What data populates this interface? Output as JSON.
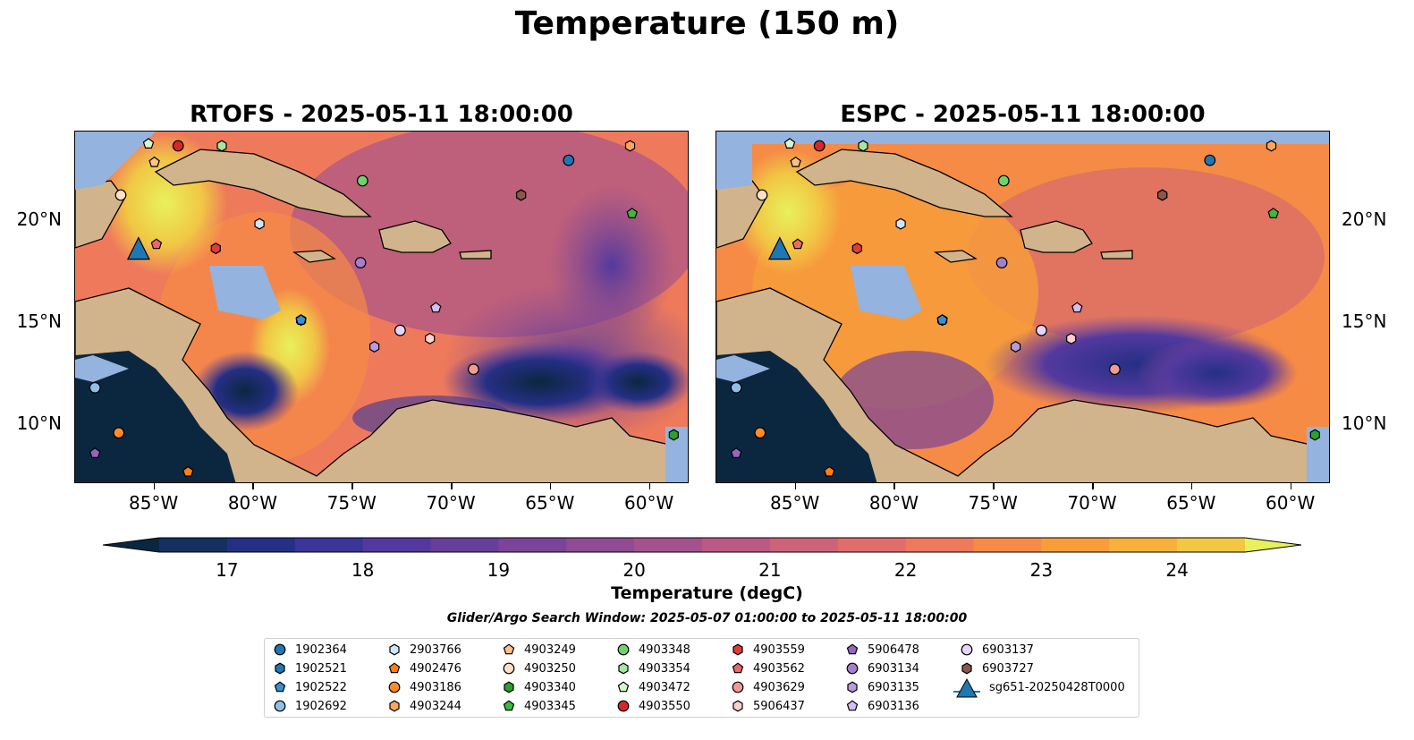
{
  "title": "Temperature (150 m)",
  "panels": [
    {
      "title": "RTOFS - 2025-05-11 18:00:00"
    },
    {
      "title": "ESPC - 2025-05-11 18:00:00"
    }
  ],
  "lon_ticks": [
    "85°W",
    "80°W",
    "75°W",
    "70°W",
    "65°W",
    "60°W"
  ],
  "lat_ticks": [
    "20°N",
    "15°N",
    "10°N"
  ],
  "colorbar": {
    "label": "Temperature (degC)",
    "ticks": [
      "17",
      "18",
      "19",
      "20",
      "21",
      "22",
      "23",
      "24"
    ],
    "min": 16.5,
    "max": 24.5,
    "step": 0.5,
    "colors": [
      "#0b2740",
      "#14305e",
      "#252f85",
      "#3a3598",
      "#53399e",
      "#663f9b",
      "#7a4598",
      "#8f4c93",
      "#a3528e",
      "#b95a84",
      "#cd6379",
      "#e06c6b",
      "#ef7a5b",
      "#f68b46",
      "#f89d3a",
      "#f6b13c",
      "#f1c744",
      "#e8f15c"
    ]
  },
  "search_window": "Glider/Argo Search Window: 2025-05-07 01:00:00 to 2025-05-11 18:00:00",
  "legend": [
    {
      "label": "1902364",
      "marker": "circle",
      "color": "#1f77b4"
    },
    {
      "label": "1902521",
      "marker": "hexagon",
      "color": "#1f77b4"
    },
    {
      "label": "1902522",
      "marker": "pentagon",
      "color": "#3a8fd1"
    },
    {
      "label": "1902692",
      "marker": "circle",
      "color": "#8ec1e8"
    },
    {
      "label": "2903766",
      "marker": "hexagon",
      "color": "#cfe6f8"
    },
    {
      "label": "4902476",
      "marker": "pentagon",
      "color": "#ff7f0e"
    },
    {
      "label": "4903186",
      "marker": "circle",
      "color": "#ff8c2a"
    },
    {
      "label": "4903244",
      "marker": "hexagon",
      "color": "#ffa65a"
    },
    {
      "label": "4903249",
      "marker": "pentagon",
      "color": "#ffc08a"
    },
    {
      "label": "4903250",
      "marker": "circle",
      "color": "#ffe0c4"
    },
    {
      "label": "4903340",
      "marker": "hexagon",
      "color": "#2ca02c"
    },
    {
      "label": "4903345",
      "marker": "pentagon",
      "color": "#3cb93c"
    },
    {
      "label": "4903348",
      "marker": "circle",
      "color": "#6fd26f"
    },
    {
      "label": "4903354",
      "marker": "hexagon",
      "color": "#a6e6a0"
    },
    {
      "label": "4903472",
      "marker": "pentagon",
      "color": "#d6f5d0"
    },
    {
      "label": "4903550",
      "marker": "circle",
      "color": "#d62728"
    },
    {
      "label": "4903559",
      "marker": "hexagon",
      "color": "#e03a3a"
    },
    {
      "label": "4903562",
      "marker": "pentagon",
      "color": "#ea6a6a"
    },
    {
      "label": "4903629",
      "marker": "circle",
      "color": "#f29a96"
    },
    {
      "label": "5906437",
      "marker": "hexagon",
      "color": "#ffd0cc"
    },
    {
      "label": "5906478",
      "marker": "pentagon",
      "color": "#9467bd"
    },
    {
      "label": "6903134",
      "marker": "circle",
      "color": "#a47fcc"
    },
    {
      "label": "6903135",
      "marker": "hexagon",
      "color": "#b99ade"
    },
    {
      "label": "6903136",
      "marker": "pentagon",
      "color": "#d4bdf0"
    },
    {
      "label": "6903137",
      "marker": "circle",
      "color": "#e6d5fa"
    },
    {
      "label": "6903727",
      "marker": "hexagon",
      "color": "#8c564b"
    },
    {
      "label": "sg651-20250428T0000",
      "marker": "triangle",
      "color": "#1f77b4"
    }
  ],
  "map_extent": {
    "lon_min": -89,
    "lon_max": -58,
    "lat_min": 7,
    "lat_max": 24.2
  },
  "positions": [
    {
      "id": "1902364",
      "lon": -64.1,
      "lat": 22.8
    },
    {
      "id": "1902521",
      "lon": -77.6,
      "lat": 15.0
    },
    {
      "id": "1902522",
      "lon": -77.6,
      "lat": 15.0
    },
    {
      "id": "1902692",
      "lon": -88.0,
      "lat": 11.7
    },
    {
      "id": "2903766",
      "lon": -79.7,
      "lat": 19.7
    },
    {
      "id": "4902476",
      "lon": -83.3,
      "lat": 7.6
    },
    {
      "id": "4903186",
      "lon": -86.8,
      "lat": 9.5
    },
    {
      "id": "4903244",
      "lon": -61.0,
      "lat": 23.5
    },
    {
      "id": "4903249",
      "lon": -85.0,
      "lat": 22.7
    },
    {
      "id": "4903250",
      "lon": -86.7,
      "lat": 21.1
    },
    {
      "id": "4903340",
      "lon": -66.5,
      "lat": 21.1
    },
    {
      "id": "4903345",
      "lon": -60.9,
      "lat": 20.2
    },
    {
      "id": "4903348",
      "lon": -74.5,
      "lat": 21.8
    },
    {
      "id": "4903354",
      "lon": -81.6,
      "lat": 23.5
    },
    {
      "id": "4903472",
      "lon": -85.3,
      "lat": 23.6
    },
    {
      "id": "4903550",
      "lon": -83.8,
      "lat": 23.5
    },
    {
      "id": "4903559",
      "lon": -81.9,
      "lat": 18.5
    },
    {
      "id": "4903562",
      "lon": -84.9,
      "lat": 18.7
    },
    {
      "id": "4903629",
      "lon": -68.9,
      "lat": 12.6
    },
    {
      "id": "5906437",
      "lon": -71.1,
      "lat": 14.1
    },
    {
      "id": "5906478",
      "lon": -88.0,
      "lat": 8.5
    },
    {
      "id": "6903134",
      "lon": -74.6,
      "lat": 17.8
    },
    {
      "id": "6903135",
      "lon": -73.9,
      "lat": 13.7
    },
    {
      "id": "6903136",
      "lon": -70.8,
      "lat": 15.6
    },
    {
      "id": "6903137",
      "lon": -72.6,
      "lat": 14.5
    },
    {
      "id": "6903727",
      "lon": -66.5,
      "lat": 21.1
    },
    {
      "id": "4903340b",
      "lon": -58.8,
      "lat": 9.4
    },
    {
      "id": "glider",
      "lon": -85.8,
      "lat": 18.5
    }
  ]
}
